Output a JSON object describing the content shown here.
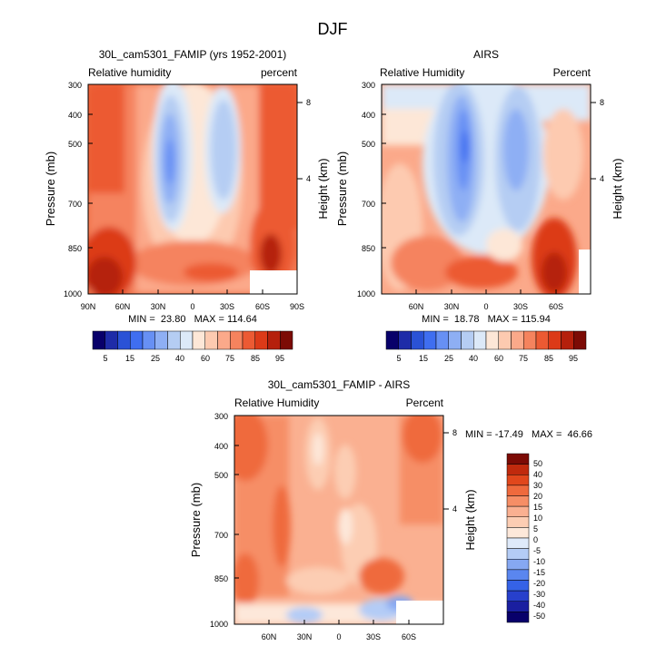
{
  "figure_title": "DJF",
  "colors": {
    "abs_scale": [
      "#08006a",
      "#1e2ca8",
      "#2a52d6",
      "#3f6ef0",
      "#6790f4",
      "#8eaff4",
      "#b5cdf3",
      "#dce9f8",
      "#fde7d7",
      "#fdcab0",
      "#fba98a",
      "#f5835e",
      "#ec5a33",
      "#dc3a18",
      "#b5200c",
      "#7c0b05"
    ],
    "diff_scale": [
      "#08006a",
      "#1a1fa0",
      "#2740cc",
      "#3562e6",
      "#5a86ef",
      "#86a8f2",
      "#b4ccf6",
      "#dfeafa",
      "#fde8da",
      "#fccdb3",
      "#fab091",
      "#f68e66",
      "#ef6a3d",
      "#e1471c",
      "#c02a0d",
      "#7c0b05"
    ]
  },
  "chart_data": [
    {
      "type": "heatmap",
      "title": "30L_cam5301_FAMIP (yrs 1952-2001)",
      "left_label": "Relative humidity",
      "right_label": "percent",
      "xlabel": "",
      "ylabel": "Pressure (mb)",
      "right_axis_label": "Height (km)",
      "x_ticks": [
        "90N",
        "60N",
        "30N",
        "0",
        "30S",
        "60S",
        "90S"
      ],
      "y_ticks": [
        "300",
        "400",
        "500",
        "700",
        "850",
        "1000"
      ],
      "right_ticks": [
        "8",
        "4"
      ],
      "stats_text": "MIN =  23.80   MAX = 114.64",
      "colorbar_labels": [
        "5",
        "15",
        "25",
        "40",
        "60",
        "75",
        "85",
        "95"
      ]
    },
    {
      "type": "heatmap",
      "title": "AIRS",
      "left_label": "Relative Humidity",
      "right_label": "Percent",
      "xlabel": "",
      "ylabel": "Pressure (mb)",
      "right_axis_label": "Height (km)",
      "x_ticks": [
        "60N",
        "30N",
        "0",
        "30S",
        "60S"
      ],
      "y_ticks": [
        "300",
        "400",
        "500",
        "700",
        "850",
        "1000"
      ],
      "right_ticks": [
        "8",
        "4"
      ],
      "stats_text": "MIN =  18.78   MAX = 115.94",
      "colorbar_labels": [
        "5",
        "15",
        "25",
        "40",
        "60",
        "75",
        "85",
        "95"
      ]
    },
    {
      "type": "heatmap",
      "title": "30L_cam5301_FAMIP - AIRS",
      "left_label": "Relative Humidity",
      "right_label": "Percent",
      "xlabel": "",
      "ylabel": "Pressure (mb)",
      "right_axis_label": "Height (km)",
      "x_ticks": [
        "60N",
        "30N",
        "0",
        "30S",
        "60S"
      ],
      "y_ticks": [
        "300",
        "400",
        "500",
        "700",
        "850",
        "1000"
      ],
      "right_ticks": [
        "8",
        "4"
      ],
      "stats_text": "MIN = -17.49   MAX =  46.66",
      "colorbar_labels": [
        "50",
        "40",
        "30",
        "20",
        "15",
        "10",
        "5",
        "0",
        "-5",
        "-10",
        "-15",
        "-20",
        "-30",
        "-40",
        "-50"
      ]
    }
  ]
}
